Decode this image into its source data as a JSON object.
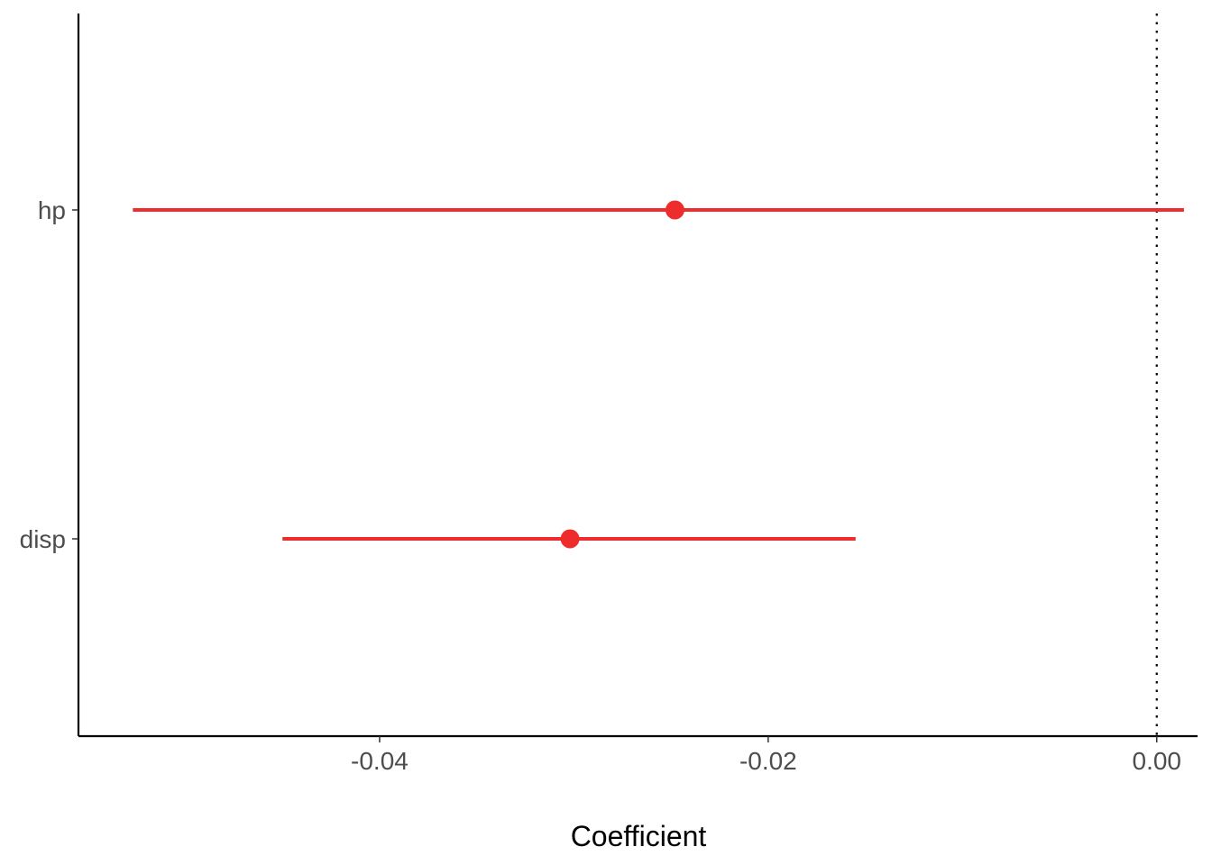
{
  "chart_data": {
    "type": "coefficient-plot",
    "title": "",
    "xlabel": "Coefficient",
    "ylabel": "",
    "xlim": [
      -0.0555,
      0.0021
    ],
    "x_ticks": [
      {
        "value": -0.04,
        "label": "-0.04"
      },
      {
        "value": -0.02,
        "label": "-0.02"
      },
      {
        "value": 0.0,
        "label": "0.00"
      }
    ],
    "reference_line": {
      "x": 0.0,
      "style": "dotted"
    },
    "grid": false,
    "legend": "none",
    "series": [
      {
        "color": "#EE2C2C",
        "points": [
          {
            "term": "hp",
            "estimate": -0.0248,
            "conf_low": -0.0527,
            "conf_high": 0.0014
          },
          {
            "term": "disp",
            "estimate": -0.0302,
            "conf_low": -0.045,
            "conf_high": -0.0155
          }
        ]
      }
    ],
    "categories": [
      "hp",
      "disp"
    ]
  }
}
